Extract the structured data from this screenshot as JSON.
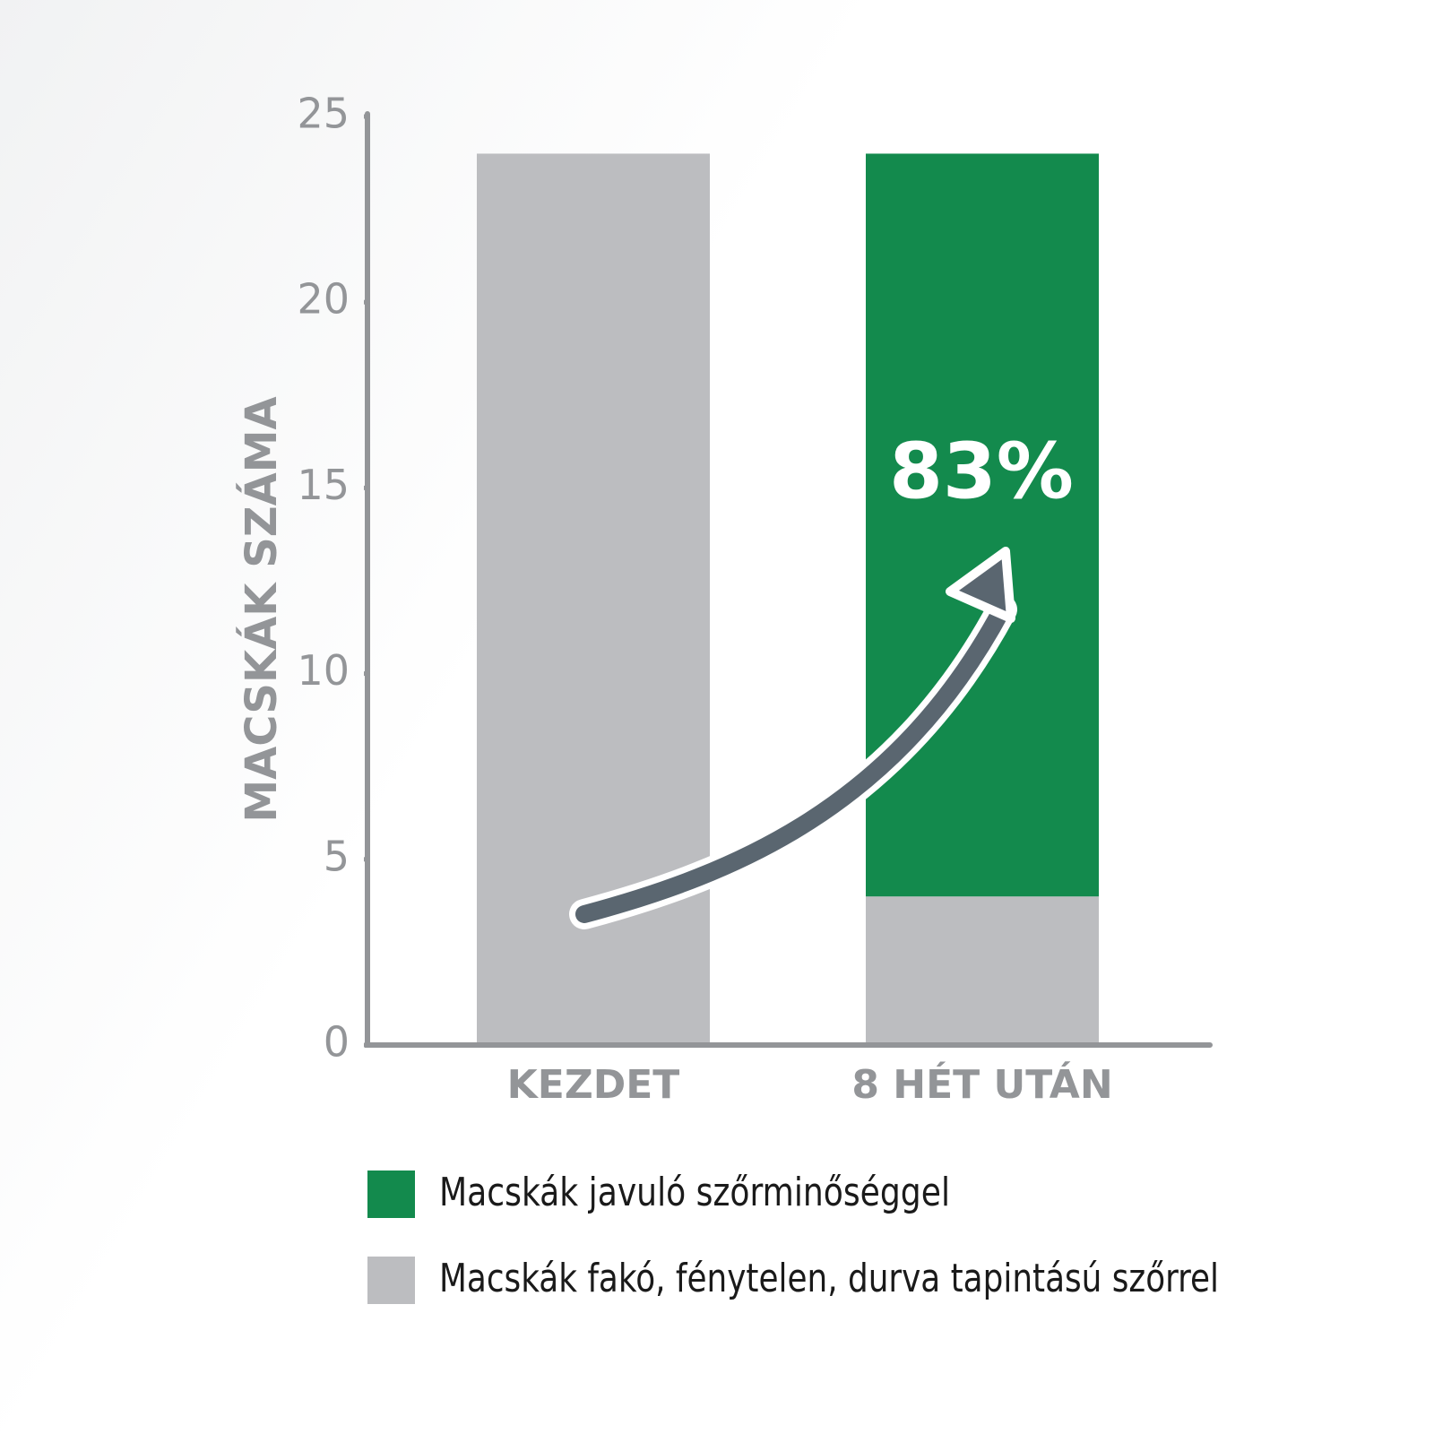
{
  "chart_data": {
    "type": "stacked_bar",
    "y_label": "MACSKÁK SZÁMA",
    "categories": [
      "KEZDET",
      "8 HÉT UTÁN"
    ],
    "series": [
      {
        "name": "Macskák javuló szőrminőséggel",
        "color": "#138a4d",
        "values": [
          0,
          20
        ]
      },
      {
        "name": "Macskák fakó, fénytelen, durva tapintású szőrrel",
        "color": "#bcbdc0",
        "values": [
          24,
          4
        ]
      }
    ],
    "ylim": [
      0,
      25
    ],
    "yticks": [
      0,
      5,
      10,
      15,
      20,
      25
    ],
    "annotation": "83%"
  }
}
